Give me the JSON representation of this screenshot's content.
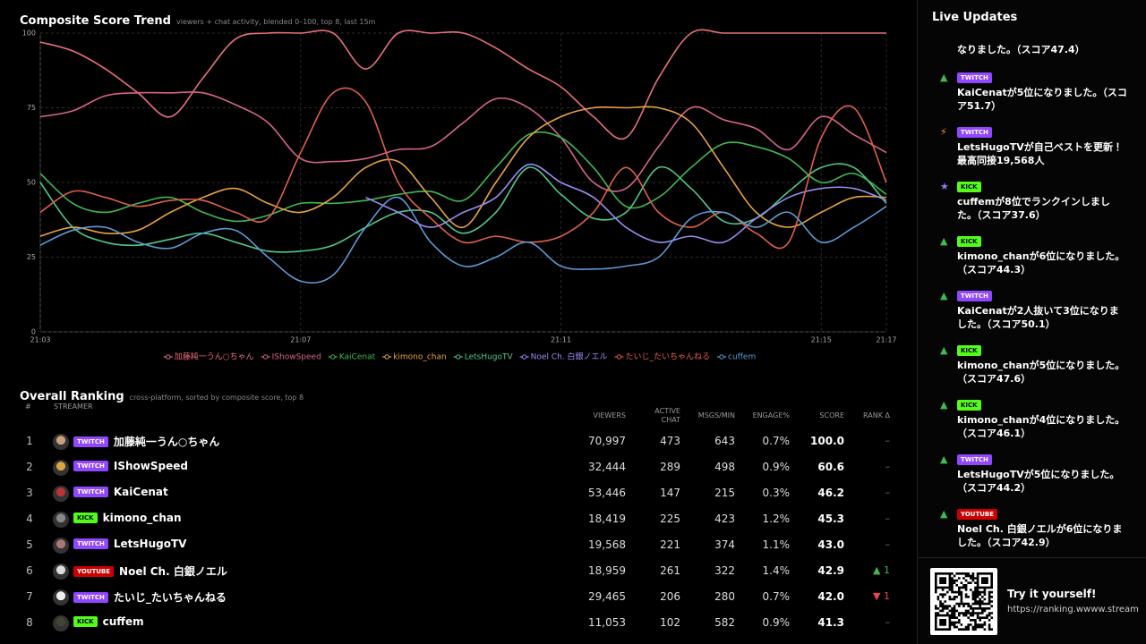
{
  "chart_data": {
    "type": "line",
    "title": "Composite Score Trend",
    "subtitle": "viewers + chat activity, blended 0–100, top 8, last 15m",
    "categories": [
      "21:03",
      null,
      null,
      null,
      null,
      null,
      null,
      null,
      "21:07",
      null,
      null,
      null,
      null,
      null,
      null,
      null,
      "21:11",
      null,
      null,
      null,
      null,
      null,
      null,
      null,
      "21:15",
      null,
      "21:17"
    ],
    "ylim": [
      0,
      100
    ],
    "yticks": [
      0,
      25,
      50,
      75,
      100
    ],
    "grid": true,
    "legend": "bottom",
    "series": [
      {
        "name": "加藤純一うん○ちゃん",
        "color": "#e8707a",
        "values": [
          97,
          94,
          88,
          80,
          72,
          85,
          98,
          100,
          100,
          100,
          88,
          100,
          100,
          100,
          95,
          88,
          82,
          72,
          65,
          85,
          100,
          100,
          100,
          100,
          100,
          100,
          100
        ]
      },
      {
        "name": "IShowSpeed",
        "color": "#d8648c",
        "values": [
          72,
          74,
          79,
          80,
          80,
          80,
          76,
          70,
          58,
          57,
          58,
          61,
          62,
          70,
          78,
          75,
          65,
          50,
          48,
          62,
          75,
          71,
          68,
          61,
          72,
          66,
          60
        ]
      },
      {
        "name": "KaiCenat",
        "color": "#3fb950",
        "values": [
          53,
          43,
          40,
          43,
          45,
          40,
          37,
          39,
          43,
          43,
          44,
          46,
          47,
          44,
          55,
          66,
          65,
          55,
          42,
          45,
          55,
          63,
          62,
          58,
          50,
          53,
          46
        ]
      },
      {
        "name": "kimono_chan",
        "color": "#e8a33d",
        "values": [
          32,
          35,
          33,
          34,
          40,
          45,
          48,
          43,
          40,
          45,
          55,
          57,
          45,
          35,
          50,
          65,
          72,
          75,
          75,
          75,
          70,
          55,
          40,
          35,
          40,
          45,
          45
        ]
      },
      {
        "name": "LetsHugoTV",
        "color": "#4ec98a",
        "values": [
          50,
          35,
          30,
          29,
          31,
          33,
          30,
          27,
          27,
          29,
          35,
          40,
          40,
          33,
          40,
          55,
          46,
          38,
          40,
          55,
          48,
          37,
          38,
          47,
          55,
          55,
          43
        ]
      },
      {
        "name": "Noel Ch. 白銀ノエル",
        "color": "#9a8cf0",
        "values": [
          null,
          null,
          null,
          null,
          null,
          null,
          null,
          null,
          null,
          null,
          45,
          40,
          35,
          40,
          45,
          56,
          50,
          45,
          35,
          30,
          32,
          30,
          38,
          45,
          48,
          48,
          44
        ]
      },
      {
        "name": "たいじ_たいちゃんねる",
        "color": "#e0604a",
        "values": [
          40,
          47,
          45,
          42,
          44,
          44,
          40,
          38,
          60,
          80,
          77,
          50,
          38,
          30,
          32,
          30,
          32,
          40,
          55,
          40,
          35,
          40,
          33,
          30,
          65,
          75,
          50
        ]
      },
      {
        "name": "cuffem",
        "color": "#5b9bd5",
        "values": [
          29,
          34,
          35,
          30,
          28,
          33,
          34,
          25,
          17,
          19,
          35,
          45,
          30,
          22,
          25,
          30,
          22,
          21,
          22,
          25,
          38,
          40,
          35,
          40,
          30,
          35,
          42
        ]
      }
    ]
  },
  "ranking": {
    "title": "Overall Ranking",
    "subtitle": "cross-platform, sorted by composite score, top 8",
    "columns": [
      "#",
      "STREAMER",
      "VIEWERS",
      "ACTIVE CHAT",
      "MSGS/MIN",
      "ENGAGE%",
      "SCORE",
      "RANK Δ"
    ],
    "rows": [
      {
        "rank": 1,
        "platform": "TWITCH",
        "badge_color": "#9146ff",
        "name": "加藤純一うん○ちゃん",
        "viewers": "70,997",
        "chat": 473,
        "msgs": 643,
        "engage": "0.7%",
        "score": "100.0",
        "delta": "–",
        "delta_color": "#777"
      },
      {
        "rank": 2,
        "platform": "TWITCH",
        "badge_color": "#9146ff",
        "name": "IShowSpeed",
        "viewers": "32,444",
        "chat": 289,
        "msgs": 498,
        "engage": "0.9%",
        "score": "60.6",
        "delta": "–",
        "delta_color": "#777"
      },
      {
        "rank": 3,
        "platform": "TWITCH",
        "badge_color": "#9146ff",
        "name": "KaiCenat",
        "viewers": "53,446",
        "chat": 147,
        "msgs": 215,
        "engage": "0.3%",
        "score": "46.2",
        "delta": "–",
        "delta_color": "#777"
      },
      {
        "rank": 4,
        "platform": "KICK",
        "badge_color": "#53fc18",
        "name": "kimono_chan",
        "viewers": "18,419",
        "chat": 225,
        "msgs": 423,
        "engage": "1.2%",
        "score": "45.3",
        "delta": "–",
        "delta_color": "#777"
      },
      {
        "rank": 5,
        "platform": "TWITCH",
        "badge_color": "#9146ff",
        "name": "LetsHugoTV",
        "viewers": "19,568",
        "chat": 221,
        "msgs": 374,
        "engage": "1.1%",
        "score": "43.0",
        "delta": "–",
        "delta_color": "#777"
      },
      {
        "rank": 6,
        "platform": "YOUTUBE",
        "badge_color": "#cc0000",
        "name": "Noel Ch. 白銀ノエル",
        "viewers": "18,959",
        "chat": 261,
        "msgs": 322,
        "engage": "1.4%",
        "score": "42.9",
        "delta": "▲ 1",
        "delta_color": "#3fb950"
      },
      {
        "rank": 7,
        "platform": "TWITCH",
        "badge_color": "#9146ff",
        "name": "たいじ_たいちゃんねる",
        "viewers": "29,465",
        "chat": 206,
        "msgs": 280,
        "engage": "0.7%",
        "score": "42.0",
        "delta": "▼ 1",
        "delta_color": "#e5484d"
      },
      {
        "rank": 8,
        "platform": "KICK",
        "badge_color": "#53fc18",
        "name": "cuffem",
        "viewers": "11,053",
        "chat": 102,
        "msgs": 582,
        "engage": "0.9%",
        "score": "41.3",
        "delta": "–",
        "delta_color": "#777"
      }
    ]
  },
  "live_updates": {
    "title": "Live Updates",
    "items": [
      {
        "icon": null,
        "badge": null,
        "badge_color": null,
        "text": "なりました。（スコア47.4）"
      },
      {
        "icon": "▲",
        "icon_color": "#3fb950",
        "badge": "TWITCH",
        "badge_color": "#9146ff",
        "text": "KaiCenatが5位になりました。（スコア51.7）"
      },
      {
        "icon": "⚡",
        "icon_color": "#f0a030",
        "badge": "TWITCH",
        "badge_color": "#9146ff",
        "text": "LetsHugoTVが自己ベストを更新！最高同接19,568人"
      },
      {
        "icon": "★",
        "icon_color": "#8f7cf0",
        "badge": "KICK",
        "badge_color": "#53fc18",
        "text": "cuffemが8位でランクインしました。（スコア37.6）"
      },
      {
        "icon": "▲",
        "icon_color": "#3fb950",
        "badge": "KICK",
        "badge_color": "#53fc18",
        "text": "kimono_chanが6位になりました。（スコア44.3）"
      },
      {
        "icon": "▲",
        "icon_color": "#3fb950",
        "badge": "TWITCH",
        "badge_color": "#9146ff",
        "text": "KaiCenatが2人抜いて3位になりました。（スコア50.1）"
      },
      {
        "icon": "▲",
        "icon_color": "#3fb950",
        "badge": "KICK",
        "badge_color": "#53fc18",
        "text": "kimono_chanが5位になりました。（スコア47.6）"
      },
      {
        "icon": "▲",
        "icon_color": "#3fb950",
        "badge": "KICK",
        "badge_color": "#53fc18",
        "text": "kimono_chanが4位になりました。（スコア46.1）"
      },
      {
        "icon": "▲",
        "icon_color": "#3fb950",
        "badge": "TWITCH",
        "badge_color": "#9146ff",
        "text": "LetsHugoTVが5位になりました。（スコア44.2）"
      },
      {
        "icon": "▲",
        "icon_color": "#3fb950",
        "badge": "YOUTUBE",
        "badge_color": "#cc0000",
        "text": "Noel Ch. 白銀ノエルが6位になりました。（スコア42.9）"
      }
    ]
  },
  "promo": {
    "title": "Try it yourself!",
    "url": "https://ranking.wwww.stream"
  }
}
